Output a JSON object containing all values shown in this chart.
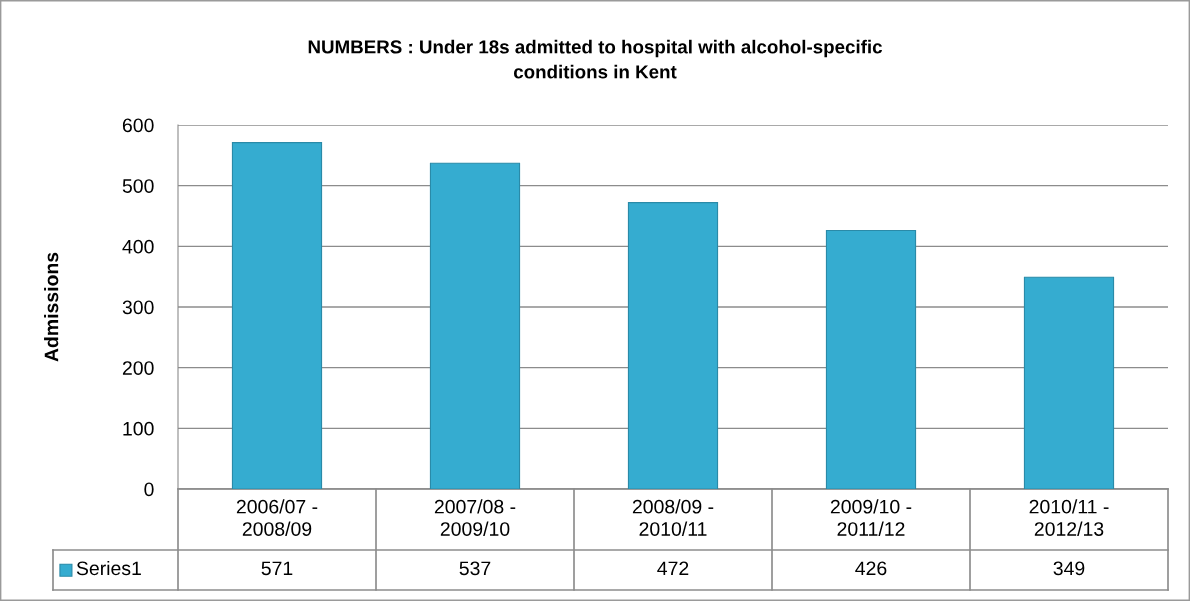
{
  "chart_data": {
    "type": "bar",
    "title": "NUMBERS : Under 18s admitted to hospital with alcohol-specific\nconditions in Kent",
    "ylabel": "Admissions",
    "categories": [
      "2006/07 -\n2008/09",
      "2007/08 -\n2009/10",
      "2008/09 -\n2010/11",
      "2009/10 -\n2011/12",
      "2010/11 -\n2012/13"
    ],
    "series": [
      {
        "name": "Series1",
        "color": "#35acd0",
        "values": [
          571,
          537,
          472,
          426,
          349
        ]
      }
    ],
    "ylim": [
      0,
      600
    ],
    "yticks": [
      0,
      100,
      200,
      300,
      400,
      500,
      600
    ],
    "grid": "y",
    "data_labels": true
  }
}
